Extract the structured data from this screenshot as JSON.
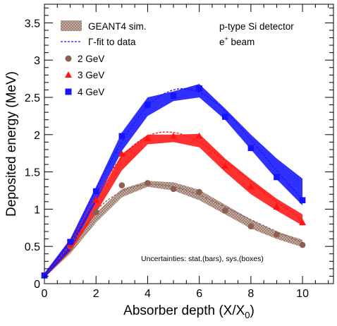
{
  "chart_data": {
    "type": "line",
    "title": "",
    "xlabel": "Absorber depth (X/X",
    "xlabel_sub": "0",
    "xlabel_close": ")",
    "ylabel": "Deposited energy (MeV)",
    "xlim": [
      0,
      11.2
    ],
    "ylim": [
      0,
      3.75
    ],
    "x_ticks": [
      0,
      2,
      4,
      6,
      8,
      10
    ],
    "x_tick_labels": [
      "0",
      "2",
      "4",
      "6",
      "8",
      "10"
    ],
    "y_ticks": [
      0,
      0.5,
      1,
      1.5,
      2,
      2.5,
      3,
      3.5
    ],
    "y_tick_labels": [
      "0",
      "0.5",
      "1",
      "1.5",
      "2",
      "2.5",
      "3",
      "3.5"
    ],
    "grid": false,
    "legend_position": "top-left",
    "legend": {
      "sim_label": "GEANT4 sim.",
      "fit_label": "Γ-fit to data",
      "entries": [
        {
          "label": "2 GeV",
          "marker": "circle",
          "color": "#8c5f52"
        },
        {
          "label": "3 GeV",
          "marker": "triangle",
          "color": "#ff1414"
        },
        {
          "label": "4 GeV",
          "marker": "square",
          "color": "#1414ff"
        }
      ]
    },
    "annotations": {
      "detector": "p-type Si detector",
      "beam": "e",
      "beam_sup": "+",
      "beam_suffix": " beam",
      "uncertainties": "Uncertainties: stat.(bars), sys.(boxes)"
    },
    "series": [
      {
        "name": "2 GeV",
        "color": "#8c5f52",
        "band_color": "#a07f73",
        "sim_x": [
          0,
          1,
          2,
          3,
          4,
          5,
          6,
          7,
          8,
          9,
          10
        ],
        "sim_low": [
          0.08,
          0.4,
          0.82,
          1.16,
          1.3,
          1.25,
          1.12,
          0.93,
          0.74,
          0.6,
          0.49
        ],
        "sim_high": [
          0.14,
          0.55,
          0.95,
          1.27,
          1.38,
          1.36,
          1.26,
          1.06,
          0.86,
          0.7,
          0.59
        ],
        "data_x": [
          0,
          1,
          2,
          3,
          4,
          5,
          6,
          7,
          8,
          9,
          10
        ],
        "data_y": [
          0.11,
          0.5,
          0.96,
          1.32,
          1.35,
          1.27,
          1.23,
          0.98,
          0.77,
          0.66,
          0.52
        ],
        "fit_x": [
          0,
          1,
          2,
          3,
          4,
          5,
          6,
          7,
          8,
          9,
          10
        ],
        "fit_y": [
          0.12,
          0.52,
          0.98,
          1.24,
          1.33,
          1.3,
          1.19,
          1.03,
          0.86,
          0.7,
          0.55
        ]
      },
      {
        "name": "3 GeV",
        "color": "#ff1414",
        "band_color": "#ff1414",
        "sim_x": [
          0,
          1,
          2,
          3,
          4,
          5,
          6,
          7,
          8,
          9,
          10
        ],
        "sim_low": [
          0.08,
          0.43,
          0.95,
          1.52,
          1.87,
          1.9,
          1.83,
          1.5,
          1.2,
          0.98,
          0.78
        ],
        "sim_high": [
          0.14,
          0.58,
          1.12,
          1.74,
          2.0,
          2.0,
          2.01,
          1.68,
          1.4,
          1.14,
          0.93
        ],
        "data_x": [
          0,
          1,
          2,
          3,
          4,
          5,
          6,
          7,
          8,
          9,
          10
        ],
        "data_y": [
          0.11,
          0.52,
          1.12,
          1.74,
          1.95,
          1.98,
          1.98,
          1.58,
          1.3,
          1.03,
          0.82
        ],
        "fit_x": [
          0,
          1,
          2,
          3,
          4,
          5,
          6,
          7,
          8,
          9,
          10
        ],
        "fit_y": [
          0.12,
          0.55,
          1.17,
          1.7,
          1.98,
          2.03,
          1.9,
          1.65,
          1.37,
          1.1,
          0.86
        ]
      },
      {
        "name": "4 GeV",
        "color": "#1414ff",
        "band_color": "#1414ff",
        "sim_x": [
          0,
          1,
          2,
          3,
          4,
          5,
          6,
          7,
          8,
          9,
          10
        ],
        "sim_low": [
          0.08,
          0.45,
          1.1,
          1.78,
          2.25,
          2.45,
          2.5,
          2.2,
          1.8,
          1.4,
          1.05
        ],
        "sim_high": [
          0.14,
          0.6,
          1.3,
          2.03,
          2.5,
          2.58,
          2.68,
          2.35,
          2.0,
          1.68,
          1.41
        ],
        "data_x": [
          0,
          1,
          2,
          3,
          4,
          5,
          6,
          7,
          8,
          9,
          10
        ],
        "data_y": [
          0.11,
          0.56,
          1.24,
          1.98,
          2.4,
          2.52,
          2.62,
          2.24,
          1.82,
          1.43,
          1.12
        ],
        "fit_x": [
          0,
          1,
          2,
          3,
          4,
          5,
          6,
          7,
          8,
          9,
          10
        ],
        "fit_y": [
          0.12,
          0.57,
          1.27,
          1.9,
          2.38,
          2.6,
          2.57,
          2.32,
          1.93,
          1.52,
          1.13
        ]
      }
    ]
  }
}
